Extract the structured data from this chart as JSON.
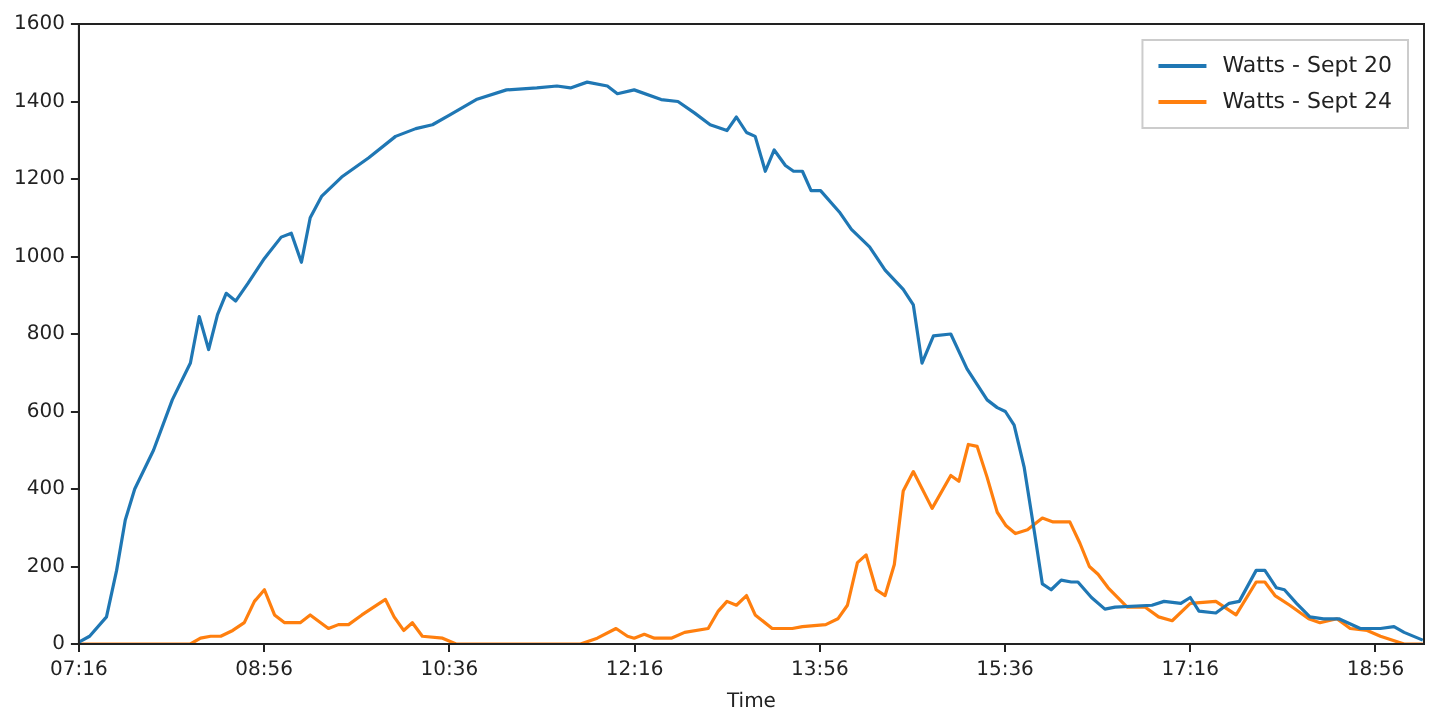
{
  "chart_data": {
    "type": "line",
    "xlabel": "Time",
    "xlim": [
      7.2667,
      19.37
    ],
    "ylim": [
      0,
      1600
    ],
    "xticks": [
      {
        "value": 7.2667,
        "label": "07:16"
      },
      {
        "value": 8.9333,
        "label": "08:56"
      },
      {
        "value": 10.6,
        "label": "10:36"
      },
      {
        "value": 12.2667,
        "label": "12:16"
      },
      {
        "value": 13.9333,
        "label": "13:56"
      },
      {
        "value": 15.6,
        "label": "15:36"
      },
      {
        "value": 17.2667,
        "label": "17:16"
      },
      {
        "value": 18.9333,
        "label": "18:56"
      }
    ],
    "yticks": [
      0,
      200,
      400,
      600,
      800,
      1000,
      1200,
      1400,
      1600
    ],
    "grid": false,
    "legend": "top right",
    "marker": "none",
    "line_style": "solid",
    "series": [
      {
        "name": "Watts - Sept 20",
        "color": "#1f77b4",
        "x": [
          7.267,
          7.363,
          7.515,
          7.606,
          7.684,
          7.769,
          7.938,
          8.107,
          8.27,
          8.35,
          8.434,
          8.514,
          8.592,
          8.677,
          8.786,
          8.936,
          9.087,
          9.178,
          9.269,
          9.348,
          9.45,
          9.631,
          9.875,
          10.116,
          10.298,
          10.448,
          10.601,
          10.842,
          11.114,
          11.387,
          11.568,
          11.69,
          11.84,
          12.022,
          12.112,
          12.263,
          12.506,
          12.657,
          12.808,
          12.947,
          13.098,
          13.183,
          13.274,
          13.352,
          13.443,
          13.523,
          13.624,
          13.697,
          13.777,
          13.855,
          13.94,
          14.109,
          14.218,
          14.381,
          14.521,
          14.684,
          14.775,
          14.853,
          14.956,
          15.112,
          15.258,
          15.439,
          15.53,
          15.603,
          15.682,
          15.773,
          15.864,
          15.936,
          16.015,
          16.105,
          16.196,
          16.256,
          16.378,
          16.499,
          16.59,
          16.922,
          17.031,
          17.182,
          17.267,
          17.345,
          17.497,
          17.617,
          17.708,
          17.86,
          17.938,
          18.042,
          18.114,
          18.223,
          18.343,
          18.465,
          18.604,
          18.797,
          18.978,
          19.1,
          19.191,
          19.359
        ],
        "values": [
          5,
          20,
          70,
          190,
          320,
          400,
          500,
          630,
          725,
          845,
          760,
          850,
          905,
          885,
          930,
          995,
          1050,
          1060,
          985,
          1100,
          1155,
          1205,
          1255,
          1310,
          1330,
          1340,
          1365,
          1405,
          1430,
          1435,
          1440,
          1435,
          1450,
          1440,
          1420,
          1430,
          1405,
          1400,
          1370,
          1340,
          1325,
          1360,
          1320,
          1310,
          1220,
          1275,
          1235,
          1220,
          1220,
          1170,
          1170,
          1115,
          1070,
          1025,
          965,
          915,
          875,
          725,
          795,
          800,
          710,
          630,
          610,
          600,
          565,
          455,
          290,
          155,
          140,
          165,
          160,
          160,
          120,
          90,
          95,
          100,
          110,
          105,
          120,
          85,
          80,
          105,
          110,
          190,
          190,
          145,
          140,
          105,
          70,
          65,
          65,
          40,
          40,
          45,
          30,
          10
        ]
      },
      {
        "name": "Watts - Sept 24",
        "color": "#ff7f0e",
        "x": [
          7.267,
          8.27,
          8.361,
          8.452,
          8.543,
          8.651,
          8.755,
          8.846,
          8.936,
          9.027,
          9.118,
          9.258,
          9.348,
          9.512,
          9.602,
          9.693,
          9.813,
          10.025,
          10.103,
          10.189,
          10.267,
          10.357,
          10.539,
          10.661,
          11.599,
          11.78,
          11.931,
          12.1,
          12.203,
          12.263,
          12.354,
          12.445,
          12.597,
          12.717,
          12.929,
          13.02,
          13.098,
          13.183,
          13.274,
          13.352,
          13.505,
          13.686,
          13.777,
          13.987,
          14.096,
          14.182,
          14.272,
          14.35,
          14.441,
          14.521,
          14.604,
          14.684,
          14.775,
          14.944,
          15.112,
          15.185,
          15.27,
          15.349,
          15.439,
          15.53,
          15.61,
          15.693,
          15.802,
          15.936,
          16.033,
          16.183,
          16.274,
          16.359,
          16.437,
          16.528,
          16.699,
          16.862,
          16.982,
          17.104,
          17.267,
          17.497,
          17.679,
          17.86,
          17.938,
          18.029,
          18.162,
          18.332,
          18.434,
          18.586,
          18.706,
          18.859,
          18.978,
          19.191,
          19.359
        ],
        "values": [
          0,
          0,
          15,
          20,
          20,
          35,
          55,
          110,
          140,
          75,
          55,
          55,
          75,
          40,
          50,
          50,
          75,
          115,
          70,
          35,
          55,
          20,
          15,
          0,
          0,
          0,
          15,
          40,
          20,
          15,
          25,
          15,
          15,
          30,
          40,
          85,
          110,
          100,
          125,
          75,
          40,
          40,
          45,
          50,
          65,
          100,
          210,
          230,
          140,
          125,
          205,
          395,
          445,
          350,
          435,
          420,
          515,
          510,
          430,
          340,
          305,
          285,
          295,
          325,
          315,
          315,
          260,
          200,
          180,
          145,
          95,
          95,
          70,
          60,
          105,
          110,
          75,
          160,
          160,
          125,
          100,
          65,
          55,
          65,
          40,
          35,
          20,
          0,
          0
        ]
      }
    ]
  }
}
